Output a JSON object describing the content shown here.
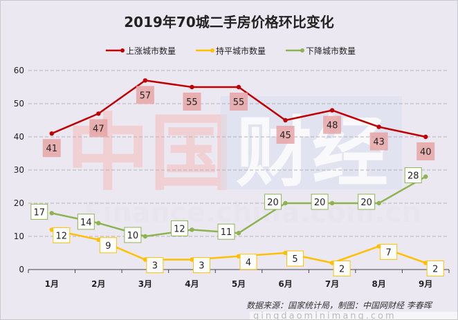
{
  "chart_data": {
    "type": "line",
    "title": "2019年70城二手房价格环比变化",
    "categories": [
      "1月",
      "2月",
      "3月",
      "4月",
      "5月",
      "6月",
      "7月",
      "8月",
      "9月"
    ],
    "ylim": [
      0,
      60
    ],
    "yticks": [
      0,
      10,
      20,
      30,
      40,
      50,
      60
    ],
    "grid": true,
    "legend_position": "top",
    "series": [
      {
        "name": "上涨城市数量",
        "color": "#c00000",
        "values": [
          41,
          47,
          57,
          55,
          55,
          45,
          48,
          43,
          40
        ]
      },
      {
        "name": "持平城市数量",
        "color": "#ffc000",
        "values": [
          12,
          9,
          3,
          3,
          4,
          5,
          2,
          7,
          2
        ]
      },
      {
        "name": "下降城市数量",
        "color": "#8db351",
        "values": [
          17,
          14,
          10,
          12,
          11,
          20,
          20,
          20,
          28
        ]
      }
    ],
    "source": "数据来源：国家统计局，制图：中国网财经 李春晖"
  },
  "watermark": {
    "logo_chars": "中国财经",
    "domain_text": "Finance.china.com.cn",
    "site_text": "qingdaominimang.com"
  }
}
